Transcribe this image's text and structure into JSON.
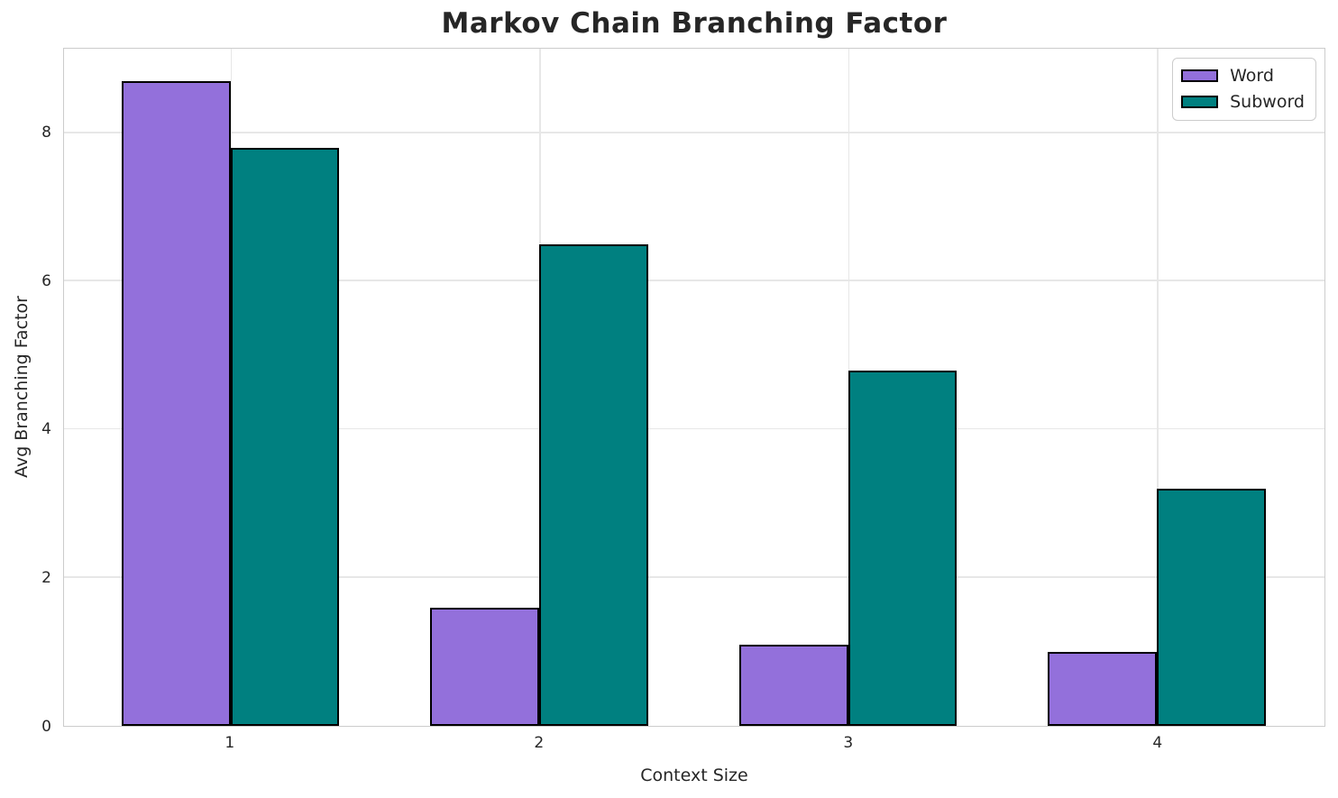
{
  "chart_data": {
    "type": "bar",
    "title": "Markov Chain Branching Factor",
    "xlabel": "Context Size",
    "ylabel": "Avg Branching Factor",
    "categories": [
      "1",
      "2",
      "3",
      "4"
    ],
    "series": [
      {
        "name": "Word",
        "color": "#9370DB",
        "values": [
          8.7,
          1.6,
          1.1,
          1.0
        ]
      },
      {
        "name": "Subword",
        "color": "#008080",
        "values": [
          7.8,
          6.5,
          4.8,
          3.2
        ]
      }
    ],
    "ylim": [
      0,
      9.14
    ],
    "yticks": [
      0,
      2,
      4,
      6,
      8
    ],
    "grid": true,
    "legend_position": "upper-right",
    "bar_edge_color": "#000000",
    "grid_color": "#e7e7e7",
    "spine_color": "#cccccc",
    "text_color": "#262626"
  }
}
